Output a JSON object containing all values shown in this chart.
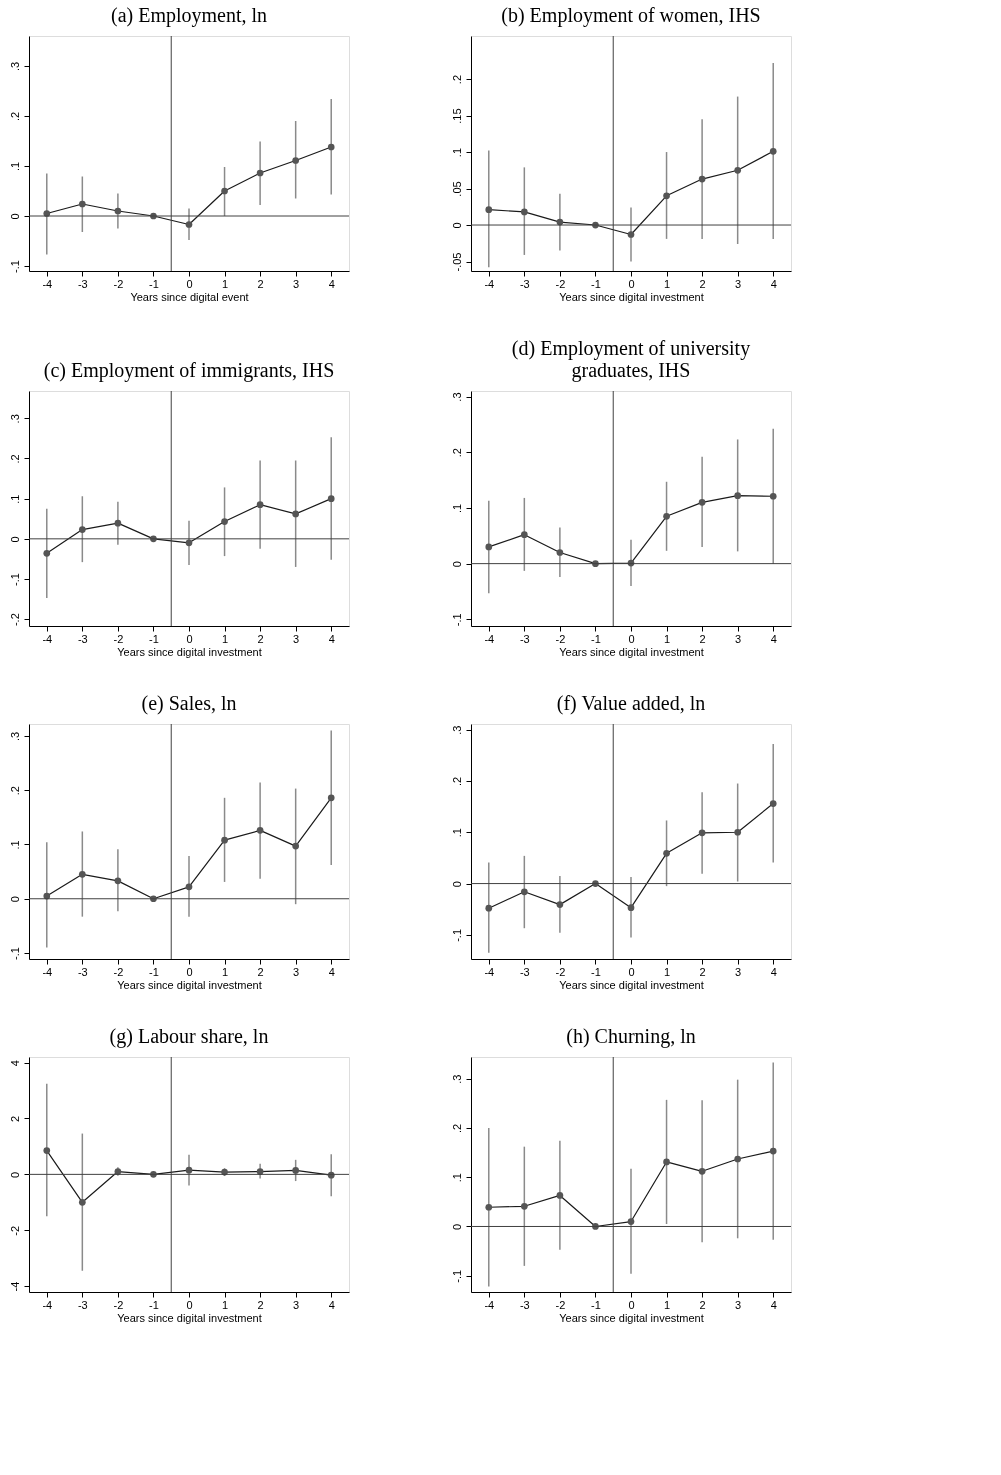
{
  "chart_data": [
    {
      "type": "line",
      "title": "(a) Employment, ln",
      "xlabel": "Years since digital event",
      "x": [
        -4,
        -3,
        -2,
        -1,
        0,
        1,
        2,
        3,
        4
      ],
      "xlim": [
        -4.5,
        4.5
      ],
      "xticks": [
        -4,
        -3,
        -2,
        -1,
        0,
        1,
        2,
        3,
        4
      ],
      "ylim": [
        -0.11,
        0.36
      ],
      "yticks": [
        {
          "value": -0.1,
          "label": "-.1"
        },
        0,
        {
          "value": 0.1,
          "label": ".1"
        },
        {
          "value": 0.2,
          "label": ".2"
        },
        {
          "value": 0.3,
          "label": ".3"
        }
      ],
      "marker": "circle",
      "grid": false,
      "series": [
        {
          "color": "#1a1a1a",
          "values": [
            0.005,
            0.024,
            0.01,
            0,
            -0.017,
            0.05,
            0.086,
            0.111,
            0.138
          ],
          "errors": [
            [
              -0.077,
              0.085
            ],
            [
              -0.032,
              0.079
            ],
            [
              -0.025,
              0.045
            ],
            null,
            [
              -0.048,
              0.015
            ],
            [
              0,
              0.098
            ],
            [
              0.022,
              0.149
            ],
            [
              0.035,
              0.19
            ],
            [
              0.043,
              0.234
            ]
          ]
        }
      ],
      "ref_lines": [
        {
          "axis": "x",
          "value": -0.5,
          "color": "#404040"
        },
        {
          "axis": "y",
          "value": 0,
          "color": "#404040"
        }
      ]
    },
    {
      "type": "line",
      "title": "(b) Employment of women, IHS",
      "xlabel": "Years since digital investment",
      "x": [
        -4,
        -3,
        -2,
        -1,
        0,
        1,
        2,
        3,
        4
      ],
      "xlim": [
        -4.5,
        4.5
      ],
      "xticks": [
        -4,
        -3,
        -2,
        -1,
        0,
        1,
        2,
        3,
        4
      ],
      "ylim": [
        -0.063,
        0.259
      ],
      "yticks": [
        {
          "value": -0.05,
          "label": "-.05"
        },
        0,
        {
          "value": 0.05,
          "label": ".05"
        },
        {
          "value": 0.1,
          "label": ".1"
        },
        {
          "value": 0.15,
          "label": ".15"
        },
        {
          "value": 0.2,
          "label": ".2"
        }
      ],
      "marker": "circle",
      "grid": false,
      "series": [
        {
          "color": "#1a1a1a",
          "values": [
            0.021,
            0.018,
            0.004,
            0,
            -0.013,
            0.04,
            0.063,
            0.075,
            0.101
          ],
          "errors": [
            [
              -0.058,
              0.102
            ],
            [
              -0.041,
              0.079
            ],
            [
              -0.035,
              0.043
            ],
            null,
            [
              -0.05,
              0.024
            ],
            [
              -0.019,
              0.1
            ],
            [
              -0.019,
              0.145
            ],
            [
              -0.026,
              0.176
            ],
            [
              -0.019,
              0.222
            ]
          ]
        }
      ],
      "ref_lines": [
        {
          "axis": "x",
          "value": -0.5,
          "color": "#404040"
        },
        {
          "axis": "y",
          "value": 0,
          "color": "#404040"
        }
      ]
    },
    {
      "type": "line",
      "title": "(c) Employment of immigrants, IHS",
      "xlabel": "Years since digital investment",
      "x": [
        -4,
        -3,
        -2,
        -1,
        0,
        1,
        2,
        3,
        4
      ],
      "xlim": [
        -4.5,
        4.5
      ],
      "xticks": [
        -4,
        -3,
        -2,
        -1,
        0,
        1,
        2,
        3,
        4
      ],
      "ylim": [
        -0.217,
        0.368
      ],
      "yticks": [
        {
          "value": -0.2,
          "label": "-.2"
        },
        {
          "value": -0.1,
          "label": "-.1"
        },
        0,
        {
          "value": 0.1,
          "label": ".1"
        },
        {
          "value": 0.2,
          "label": ".2"
        },
        {
          "value": 0.3,
          "label": ".3"
        }
      ],
      "marker": "circle",
      "grid": false,
      "series": [
        {
          "color": "#1a1a1a",
          "values": [
            -0.036,
            0.023,
            0.039,
            0,
            -0.01,
            0.043,
            0.085,
            0.062,
            0.1
          ],
          "errors": [
            [
              -0.147,
              0.075
            ],
            [
              -0.058,
              0.106
            ],
            [
              -0.015,
              0.092
            ],
            null,
            [
              -0.065,
              0.045
            ],
            [
              -0.043,
              0.128
            ],
            [
              -0.025,
              0.195
            ],
            [
              -0.07,
              0.195
            ],
            [
              -0.052,
              0.253
            ]
          ]
        }
      ],
      "ref_lines": [
        {
          "axis": "x",
          "value": -0.5,
          "color": "#404040"
        },
        {
          "axis": "y",
          "value": 0,
          "color": "#404040"
        }
      ]
    },
    {
      "type": "line",
      "title": "(d) Employment of university graduates, IHS",
      "xlabel": "Years since digital investment",
      "x": [
        -4,
        -3,
        -2,
        -1,
        0,
        1,
        2,
        3,
        4
      ],
      "xlim": [
        -4.5,
        4.5
      ],
      "xticks": [
        -4,
        -3,
        -2,
        -1,
        0,
        1,
        2,
        3,
        4
      ],
      "ylim": [
        -0.112,
        0.31
      ],
      "yticks": [
        {
          "value": -0.1,
          "label": "-.1"
        },
        0,
        {
          "value": 0.1,
          "label": ".1"
        },
        {
          "value": 0.2,
          "label": ".2"
        },
        {
          "value": 0.3,
          "label": ".3"
        }
      ],
      "marker": "circle",
      "grid": false,
      "series": [
        {
          "color": "#1a1a1a",
          "values": [
            0.03,
            0.052,
            0.02,
            0,
            0.001,
            0.085,
            0.11,
            0.122,
            0.121
          ],
          "errors": [
            [
              -0.053,
              0.113
            ],
            [
              -0.013,
              0.118
            ],
            [
              -0.024,
              0.065
            ],
            null,
            [
              -0.04,
              0.043
            ],
            [
              0.023,
              0.147
            ],
            [
              0.03,
              0.192
            ],
            [
              0.022,
              0.223
            ],
            [
              0,
              0.242
            ]
          ]
        }
      ],
      "ref_lines": [
        {
          "axis": "x",
          "value": -0.5,
          "color": "#404040"
        },
        {
          "axis": "y",
          "value": 0,
          "color": "#404040"
        }
      ]
    },
    {
      "type": "line",
      "title": "(e) Sales, ln",
      "xlabel": "Years since digital investment",
      "x": [
        -4,
        -3,
        -2,
        -1,
        0,
        1,
        2,
        3,
        4
      ],
      "xlim": [
        -4.5,
        4.5
      ],
      "xticks": [
        -4,
        -3,
        -2,
        -1,
        0,
        1,
        2,
        3,
        4
      ],
      "ylim": [
        -0.111,
        0.322
      ],
      "yticks": [
        {
          "value": -0.1,
          "label": "-.1"
        },
        0,
        {
          "value": 0.1,
          "label": ".1"
        },
        {
          "value": 0.2,
          "label": ".2"
        },
        {
          "value": 0.3,
          "label": ".3"
        }
      ],
      "marker": "circle",
      "grid": false,
      "series": [
        {
          "color": "#1a1a1a",
          "values": [
            0.005,
            0.045,
            0.033,
            0,
            0.022,
            0.108,
            0.126,
            0.097,
            0.186
          ],
          "errors": [
            [
              -0.09,
              0.104
            ],
            [
              -0.033,
              0.124
            ],
            [
              -0.023,
              0.091
            ],
            null,
            [
              -0.033,
              0.079
            ],
            [
              0.031,
              0.186
            ],
            [
              0.037,
              0.214
            ],
            [
              -0.01,
              0.203
            ],
            [
              0.062,
              0.31
            ]
          ]
        }
      ],
      "ref_lines": [
        {
          "axis": "x",
          "value": -0.5,
          "color": "#404040"
        },
        {
          "axis": "y",
          "value": 0,
          "color": "#404040"
        }
      ]
    },
    {
      "type": "line",
      "title": "(f) Value added, ln",
      "xlabel": "Years since digital investment",
      "x": [
        -4,
        -3,
        -2,
        -1,
        0,
        1,
        2,
        3,
        4
      ],
      "xlim": [
        -4.5,
        4.5
      ],
      "xticks": [
        -4,
        -3,
        -2,
        -1,
        0,
        1,
        2,
        3,
        4
      ],
      "ylim": [
        -0.147,
        0.311
      ],
      "yticks": [
        {
          "value": -0.1,
          "label": "-.1"
        },
        0,
        {
          "value": 0.1,
          "label": ".1"
        },
        {
          "value": 0.2,
          "label": ".2"
        },
        {
          "value": 0.3,
          "label": ".3"
        }
      ],
      "marker": "circle",
      "grid": false,
      "series": [
        {
          "color": "#1a1a1a",
          "values": [
            -0.048,
            -0.016,
            -0.041,
            0,
            -0.047,
            0.059,
            0.099,
            0.1,
            0.156
          ],
          "errors": [
            [
              -0.135,
              0.041
            ],
            [
              -0.087,
              0.054
            ],
            [
              -0.096,
              0.015
            ],
            null,
            [
              -0.105,
              0.013
            ],
            [
              -0.005,
              0.123
            ],
            [
              0.019,
              0.178
            ],
            [
              0.004,
              0.195
            ],
            [
              0.041,
              0.272
            ]
          ]
        }
      ],
      "ref_lines": [
        {
          "axis": "x",
          "value": -0.5,
          "color": "#404040"
        },
        {
          "axis": "y",
          "value": 0,
          "color": "#404040"
        }
      ]
    },
    {
      "type": "line",
      "title": "(g) Labour share, ln",
      "xlabel": "Years since digital investment",
      "x": [
        -4,
        -3,
        -2,
        -1,
        0,
        1,
        2,
        3,
        4
      ],
      "xlim": [
        -4.5,
        4.5
      ],
      "xticks": [
        -4,
        -3,
        -2,
        -1,
        0,
        1,
        2,
        3,
        4
      ],
      "ylim": [
        -4.21,
        4.2
      ],
      "yticks": [
        -4,
        -2,
        0,
        2,
        4
      ],
      "marker": "circle",
      "grid": false,
      "series": [
        {
          "color": "#1a1a1a",
          "values": [
            0.85,
            -1.0,
            0.1,
            0,
            0.15,
            0.08,
            0.1,
            0.14,
            -0.03
          ],
          "errors": [
            [
              -1.5,
              3.24
            ],
            [
              -3.45,
              1.46
            ],
            [
              -0.05,
              0.25
            ],
            null,
            [
              -0.4,
              0.7
            ],
            [
              -0.06,
              0.22
            ],
            [
              -0.15,
              0.38
            ],
            [
              -0.24,
              0.52
            ],
            [
              -0.78,
              0.72
            ]
          ]
        }
      ],
      "ref_lines": [
        {
          "axis": "x",
          "value": -0.5,
          "color": "#404040"
        },
        {
          "axis": "y",
          "value": 0,
          "color": "#404040"
        }
      ]
    },
    {
      "type": "line",
      "title": "(h) Churning, ln",
      "xlabel": "Years since digital investment",
      "x": [
        -4,
        -3,
        -2,
        -1,
        0,
        1,
        2,
        3,
        4
      ],
      "xlim": [
        -4.5,
        4.5
      ],
      "xticks": [
        -4,
        -3,
        -2,
        -1,
        0,
        1,
        2,
        3,
        4
      ],
      "ylim": [
        -0.133,
        0.344
      ],
      "yticks": [
        {
          "value": -0.1,
          "label": "-.1"
        },
        0,
        {
          "value": 0.1,
          "label": ".1"
        },
        {
          "value": 0.2,
          "label": ".2"
        },
        {
          "value": 0.3,
          "label": ".3"
        }
      ],
      "marker": "circle",
      "grid": false,
      "series": [
        {
          "color": "#1a1a1a",
          "values": [
            0.039,
            0.041,
            0.063,
            0,
            0.01,
            0.131,
            0.112,
            0.137,
            0.153
          ],
          "errors": [
            [
              -0.122,
              0.2
            ],
            [
              -0.08,
              0.162
            ],
            [
              -0.047,
              0.174
            ],
            null,
            [
              -0.096,
              0.117
            ],
            [
              0.005,
              0.257
            ],
            [
              -0.032,
              0.256
            ],
            [
              -0.024,
              0.298
            ],
            [
              -0.027,
              0.333
            ]
          ]
        }
      ],
      "ref_lines": [
        {
          "axis": "x",
          "value": -0.5,
          "color": "#404040"
        },
        {
          "axis": "y",
          "value": 0,
          "color": "#404040"
        }
      ]
    }
  ]
}
